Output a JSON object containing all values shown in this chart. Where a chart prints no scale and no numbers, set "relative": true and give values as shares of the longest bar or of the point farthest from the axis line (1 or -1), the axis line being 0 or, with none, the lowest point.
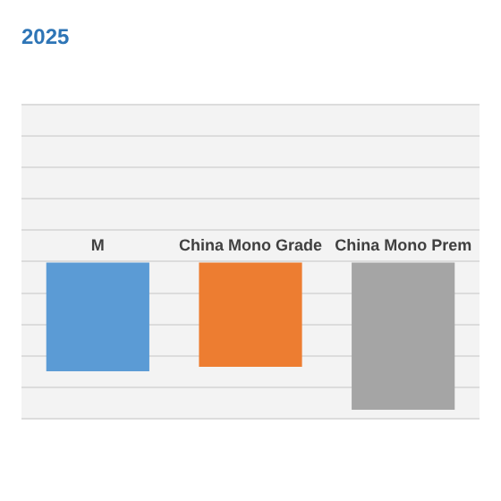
{
  "chart_data": {
    "type": "bar",
    "title": "2025",
    "categories": [
      "M",
      "China Mono Grade",
      "China Mono Prem"
    ],
    "values": [
      -0.74,
      -0.71,
      -1
    ],
    "colors": [
      "#5b9bd5",
      "#ed7d31",
      "#a5a5a5"
    ],
    "relative": true,
    "grid": "y",
    "legend": false
  }
}
